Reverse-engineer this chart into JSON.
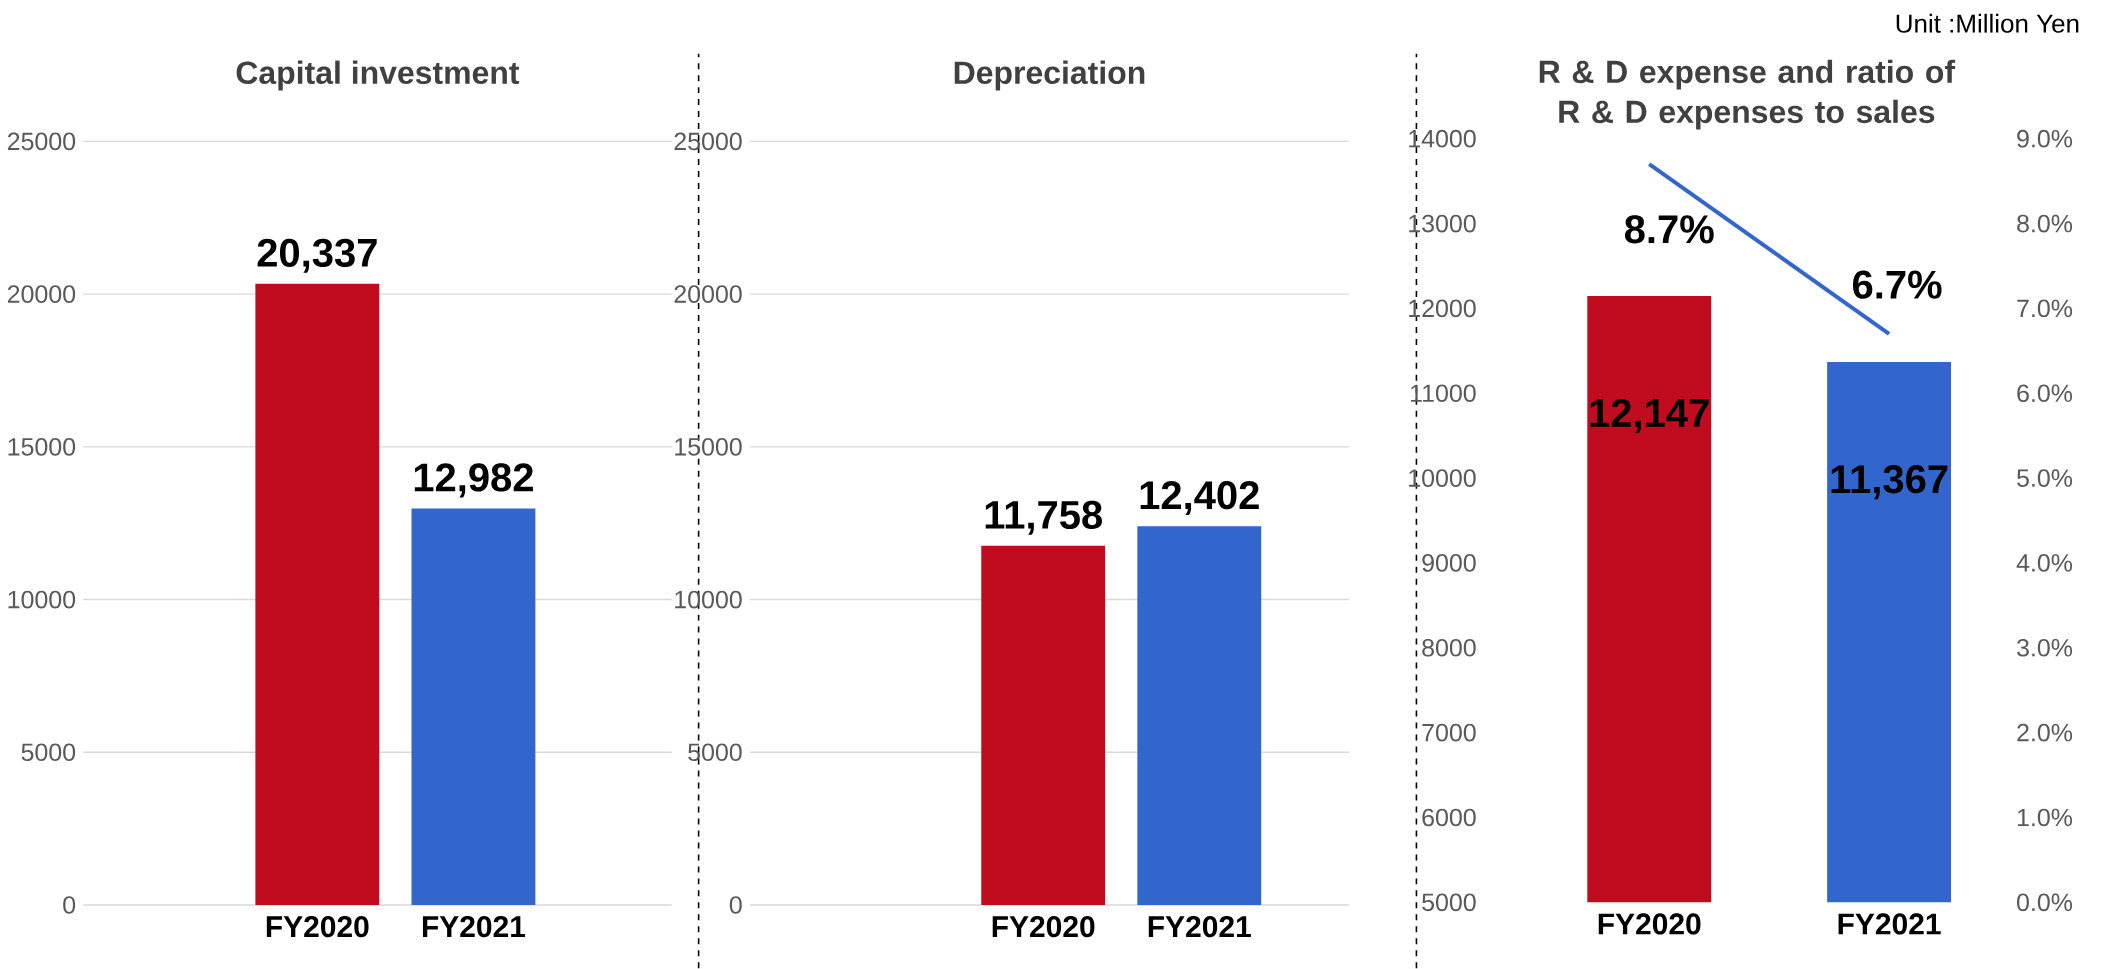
{
  "chart_data": [
    {
      "type": "bar",
      "title": "Capital investment",
      "categories": [
        "FY2020",
        "FY2021"
      ],
      "values": [
        20337,
        12982
      ],
      "colors": [
        "#c00c1e",
        "#3366cc"
      ],
      "value_labels": [
        "20,337",
        "12,982"
      ],
      "ylim": [
        0,
        25000
      ],
      "yticks": [
        0,
        5000,
        10000,
        15000,
        20000,
        25000
      ],
      "grid": "y"
    },
    {
      "type": "bar",
      "title": "Depreciation",
      "categories": [
        "FY2020",
        "FY2021"
      ],
      "values": [
        11758,
        12402
      ],
      "colors": [
        "#c00c1e",
        "#3366cc"
      ],
      "value_labels": [
        "11,758",
        "12,402"
      ],
      "ylim": [
        0,
        25000
      ],
      "yticks": [
        0,
        5000,
        10000,
        15000,
        20000,
        25000
      ],
      "grid": "y"
    },
    {
      "type": "bar",
      "title": "R & D expense and ratio of R & D expenses to sales",
      "categories": [
        "FY2020",
        "FY2021"
      ],
      "series": [
        {
          "type": "bar",
          "colors": [
            "#c00c1e",
            "#3366cc"
          ],
          "values": [
            12147,
            11367
          ],
          "value_labels": [
            "12,147",
            "11,367"
          ]
        },
        {
          "type": "line",
          "axis": "y2",
          "color": "#3366cc",
          "values": [
            8.7,
            6.7
          ],
          "value_labels": [
            "8.7%",
            "6.7%"
          ]
        }
      ],
      "ylim": [
        5000,
        14000
      ],
      "yticks": [
        5000,
        6000,
        7000,
        8000,
        9000,
        10000,
        11000,
        12000,
        13000,
        14000
      ],
      "y2lim": [
        0,
        9
      ],
      "y2ticks": [
        {
          "value": 0,
          "label": "0.0%"
        },
        {
          "value": 1,
          "label": "1.0%"
        },
        {
          "value": 2,
          "label": "2.0%"
        },
        {
          "value": 3,
          "label": "3.0%"
        },
        {
          "value": 4,
          "label": "4.0%"
        },
        {
          "value": 5,
          "label": "5.0%"
        },
        {
          "value": 6,
          "label": "6.0%"
        },
        {
          "value": 7,
          "label": "7.0%"
        },
        {
          "value": 8,
          "label": "8.0%"
        },
        {
          "value": 9,
          "label": "9.0%"
        }
      ],
      "grid": false,
      "annotations": [
        "Unit :Million Yen"
      ]
    }
  ]
}
